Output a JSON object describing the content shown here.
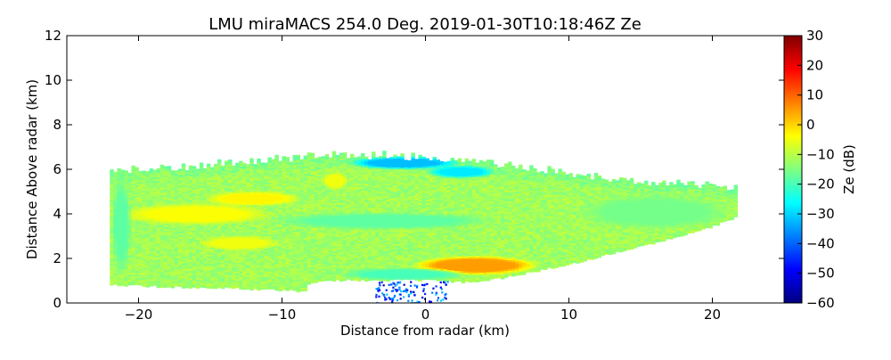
{
  "chart_data": {
    "type": "heatmap",
    "title": "LMU miraMACS 254.0 Deg. 2019-01-30T10:18:46Z  Ze",
    "xlabel": "Distance from radar (km)",
    "ylabel": "Distance Above radar  (km)",
    "xlim": [
      -25,
      25
    ],
    "ylim": [
      0,
      12
    ],
    "x_ticks": [
      -20,
      -10,
      0,
      10,
      20
    ],
    "x_tick_labels": [
      "−20",
      "−10",
      "0",
      "10",
      "20"
    ],
    "y_ticks": [
      0,
      2,
      4,
      6,
      8,
      10,
      12
    ],
    "y_tick_labels": [
      "0",
      "2",
      "4",
      "6",
      "8",
      "10",
      "12"
    ],
    "colorbar": {
      "label": "Ze (dB)",
      "range": [
        -60,
        30
      ],
      "ticks": [
        30,
        20,
        10,
        0,
        -10,
        -20,
        -30,
        -40,
        -50,
        -60
      ],
      "tick_labels": [
        "30",
        "20",
        "10",
        "0",
        "−10",
        "−20",
        "−30",
        "−40",
        "−50",
        "−60"
      ],
      "colormap": "jet"
    },
    "field": {
      "description_units": "km",
      "background_dBZ": -12,
      "top_boundary": [
        [
          -22,
          5.9
        ],
        [
          -16,
          6.1
        ],
        [
          -11,
          6.4
        ],
        [
          -7,
          6.6
        ],
        [
          -5,
          6.6
        ],
        [
          -3,
          6.6
        ],
        [
          0,
          6.5
        ],
        [
          4,
          6.3
        ],
        [
          8,
          6.0
        ],
        [
          12,
          5.6
        ],
        [
          15,
          5.4
        ],
        [
          19,
          5.3
        ],
        [
          21.7,
          5.1
        ]
      ],
      "bottom_boundary": [
        [
          -22,
          0.8
        ],
        [
          -18,
          0.7
        ],
        [
          -14,
          0.65
        ],
        [
          -10,
          0.55
        ],
        [
          -8.3,
          0.5
        ],
        [
          -8.3,
          0.85
        ],
        [
          -6,
          1.0
        ],
        [
          -3,
          1.0
        ],
        [
          0,
          1.0
        ],
        [
          3,
          0.9
        ],
        [
          5,
          1.05
        ],
        [
          10,
          1.7
        ],
        [
          15,
          2.5
        ],
        [
          20,
          3.4
        ],
        [
          21.7,
          3.85
        ]
      ],
      "features": [
        {
          "name": "lower-strong-echo",
          "cx": 3.5,
          "cy": 1.7,
          "rx": 4.5,
          "ry": 0.45,
          "dBZ": 5
        },
        {
          "name": "left-mid-layer",
          "cx": -16,
          "cy": 4.0,
          "rx": 5.5,
          "ry": 0.5,
          "dBZ": -4
        },
        {
          "name": "left-upper-band",
          "cx": -12,
          "cy": 4.7,
          "rx": 3.5,
          "ry": 0.35,
          "dBZ": -3
        },
        {
          "name": "left-lower-band",
          "cx": -13,
          "cy": 2.7,
          "rx": 3.0,
          "ry": 0.35,
          "dBZ": -5
        },
        {
          "name": "near-top-streak",
          "cx": -6.3,
          "cy": 5.5,
          "rx": 1.0,
          "ry": 0.4,
          "dBZ": -5
        },
        {
          "name": "cloud-top-weak",
          "cx": -1.5,
          "cy": 6.3,
          "rx": 4.0,
          "ry": 0.3,
          "dBZ": -32
        },
        {
          "name": "cloud-top-weak-2",
          "cx": 2.5,
          "cy": 5.9,
          "rx": 2.5,
          "ry": 0.3,
          "dBZ": -28
        },
        {
          "name": "left-edge-weak",
          "cx": -21.2,
          "cy": 3.5,
          "rx": 0.7,
          "ry": 2.3,
          "dBZ": -18
        },
        {
          "name": "right-tail",
          "cx": 16,
          "cy": 4.1,
          "rx": 5.5,
          "ry": 0.8,
          "dBZ": -16
        },
        {
          "name": "mid-green-band",
          "cx": -3,
          "cy": 3.7,
          "rx": 8.0,
          "ry": 0.4,
          "dBZ": -18
        },
        {
          "name": "mid-green-band-2",
          "cx": -1.5,
          "cy": 1.3,
          "rx": 4.5,
          "ry": 0.3,
          "dBZ": -20
        }
      ],
      "ground_clutter": {
        "x_range": [
          -3.5,
          1.5
        ],
        "y_range": [
          0,
          1.0
        ],
        "dBZ_range": [
          -55,
          -30
        ]
      }
    }
  }
}
